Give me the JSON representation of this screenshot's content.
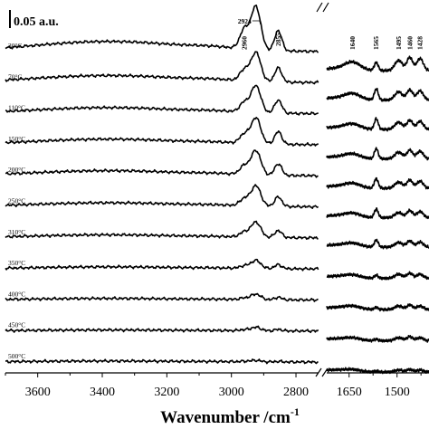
{
  "chart_data": {
    "type": "line",
    "title": "",
    "xlabel": "Wavenumber /cm",
    "xlabel_superscript": "-1",
    "ylabel": "",
    "scale_bar_label": "0.05 a.u.",
    "scale_bar_value": 0.05,
    "legend": "none",
    "grid": false,
    "broken_axis": true,
    "x_reversed": true,
    "panels": [
      {
        "id": "high",
        "xlim": [
          3700,
          2730
        ],
        "ticks": [
          3600,
          3400,
          3200,
          3000,
          2800
        ],
        "tick_labels": [
          "3600",
          "3400",
          "3200",
          "3000",
          "2800"
        ]
      },
      {
        "id": "low",
        "xlim": [
          1720,
          1400
        ],
        "ticks": [
          1650,
          1500
        ],
        "tick_labels": [
          "1650",
          "1500"
        ]
      }
    ],
    "peak_labels": [
      {
        "text": "2924",
        "x": 2924,
        "panel": "high"
      },
      {
        "text": "2960",
        "x": 2960,
        "panel": "high"
      },
      {
        "text": "2855",
        "x": 2855,
        "panel": "high"
      },
      {
        "text": "1640",
        "x": 1640,
        "panel": "low"
      },
      {
        "text": "1565",
        "x": 1565,
        "panel": "low"
      },
      {
        "text": "1495",
        "x": 1495,
        "panel": "low"
      },
      {
        "text": "1460",
        "x": 1460,
        "panel": "low"
      },
      {
        "text": "1428",
        "x": 1428,
        "panel": "low"
      }
    ],
    "series": [
      {
        "name": "30°C",
        "high": {
          "bump": 0.02,
          "p2960": 0.038,
          "p2924": 0.085,
          "p2855": 0.04
        },
        "low": {
          "p1640": 0.016,
          "p1565": 0.016,
          "p1495": 0.02,
          "p1460": 0.026,
          "p1428": 0.024
        }
      },
      {
        "name": "70°C",
        "high": {
          "bump": 0.014,
          "p2960": 0.022,
          "p2924": 0.057,
          "p2855": 0.028
        },
        "low": {
          "p1640": 0.012,
          "p1565": 0.022,
          "p1495": 0.016,
          "p1460": 0.02,
          "p1428": 0.018
        }
      },
      {
        "name": "110°C",
        "high": {
          "bump": 0.012,
          "p2960": 0.019,
          "p2924": 0.053,
          "p2855": 0.026
        },
        "low": {
          "p1640": 0.01,
          "p1565": 0.021,
          "p1495": 0.014,
          "p1460": 0.018,
          "p1428": 0.016
        }
      },
      {
        "name": "150°C",
        "high": {
          "bump": 0.011,
          "p2960": 0.018,
          "p2924": 0.051,
          "p2855": 0.025
        },
        "low": {
          "p1640": 0.009,
          "p1565": 0.02,
          "p1495": 0.013,
          "p1460": 0.017,
          "p1428": 0.015
        }
      },
      {
        "name": "200°C",
        "high": {
          "bump": 0.01,
          "p2960": 0.017,
          "p2924": 0.048,
          "p2855": 0.023
        },
        "low": {
          "p1640": 0.009,
          "p1565": 0.019,
          "p1495": 0.012,
          "p1460": 0.016,
          "p1428": 0.014
        }
      },
      {
        "name": "250°C",
        "high": {
          "bump": 0.008,
          "p2960": 0.014,
          "p2924": 0.04,
          "p2855": 0.019
        },
        "low": {
          "p1640": 0.008,
          "p1565": 0.017,
          "p1495": 0.01,
          "p1460": 0.014,
          "p1428": 0.012
        }
      },
      {
        "name": "310°C",
        "high": {
          "bump": 0.006,
          "p2960": 0.01,
          "p2924": 0.03,
          "p2855": 0.014
        },
        "low": {
          "p1640": 0.007,
          "p1565": 0.014,
          "p1495": 0.009,
          "p1460": 0.012,
          "p1428": 0.01
        }
      },
      {
        "name": "350°C",
        "high": {
          "bump": 0.004,
          "p2960": 0.005,
          "p2924": 0.016,
          "p2855": 0.008
        },
        "low": {
          "p1640": 0.006,
          "p1565": 0.006,
          "p1495": 0.008,
          "p1460": 0.01,
          "p1428": 0.008
        }
      },
      {
        "name": "400°C",
        "high": {
          "bump": 0.003,
          "p2960": 0.003,
          "p2924": 0.011,
          "p2855": 0.005
        },
        "low": {
          "p1640": 0.006,
          "p1565": 0.004,
          "p1495": 0.007,
          "p1460": 0.009,
          "p1428": 0.007
        }
      },
      {
        "name": "450°C",
        "high": {
          "bump": 0.002,
          "p2960": 0.002,
          "p2924": 0.007,
          "p2855": 0.003
        },
        "low": {
          "p1640": 0.005,
          "p1565": 0.003,
          "p1495": 0.006,
          "p1460": 0.008,
          "p1428": 0.006
        }
      },
      {
        "name": "500°C",
        "high": {
          "bump": 0.002,
          "p2960": 0.001,
          "p2924": 0.003,
          "p2855": 0.001
        },
        "low": {
          "p1640": 0.004,
          "p1565": 0.002,
          "p1495": 0.004,
          "p1460": 0.005,
          "p1428": 0.004
        }
      }
    ]
  }
}
